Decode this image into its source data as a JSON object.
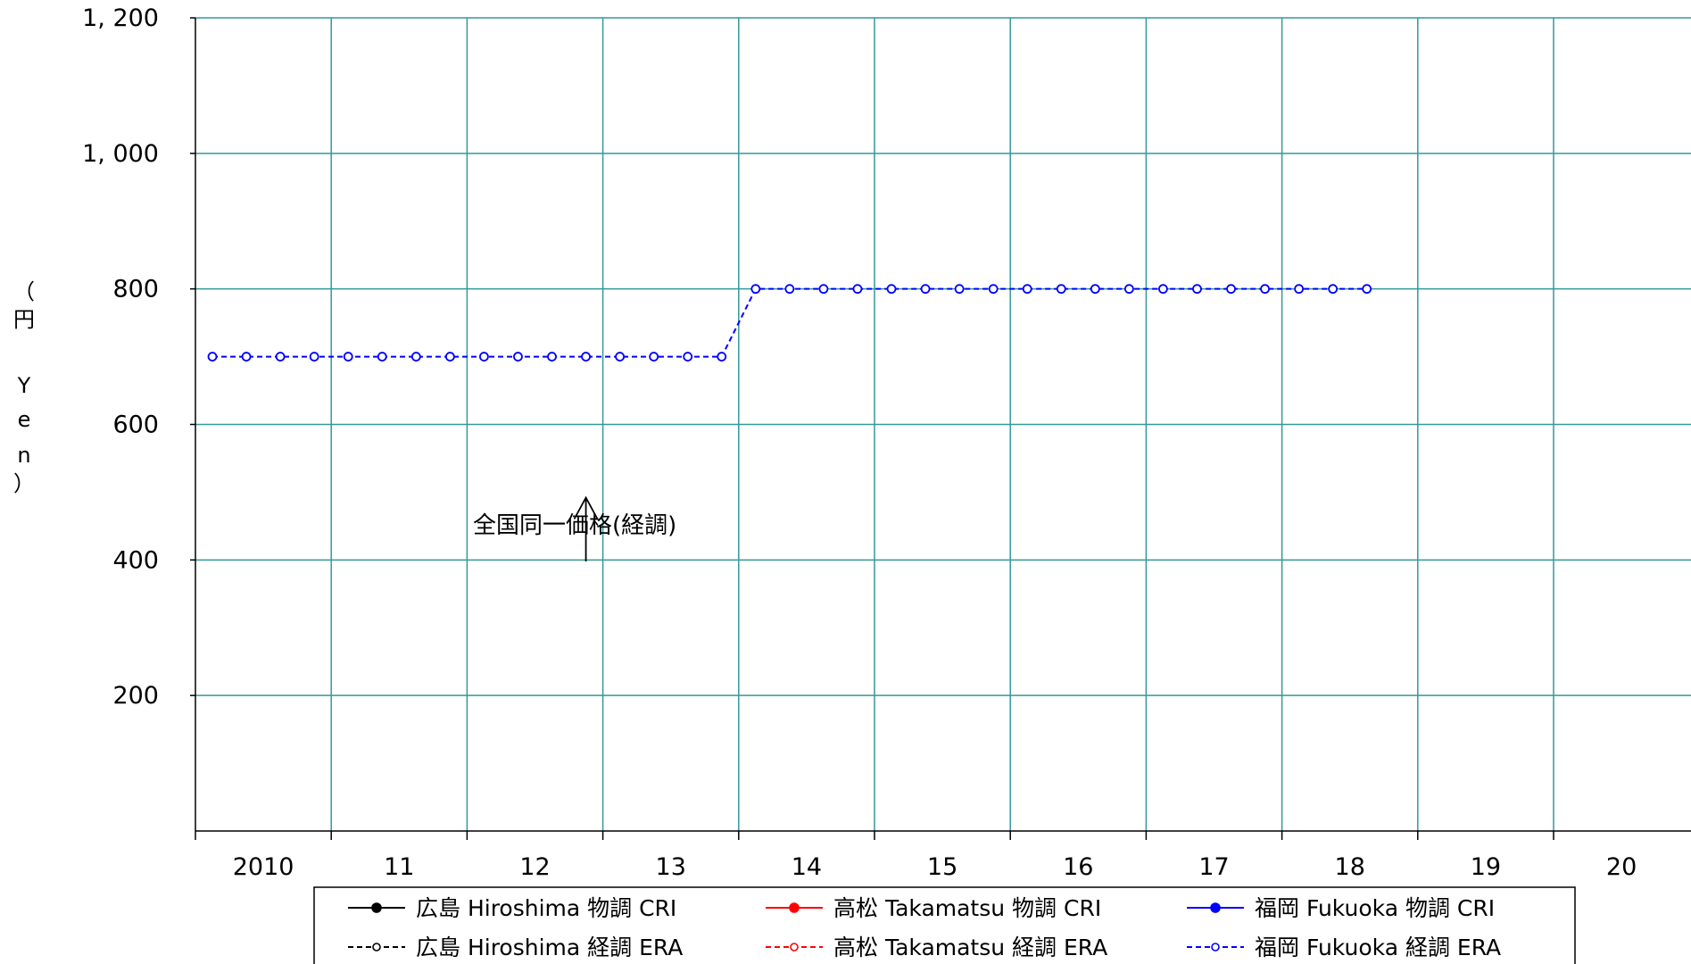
{
  "chart_data": {
    "type": "line",
    "title": "",
    "xlabel": "",
    "ylabel_chars": [
      "（",
      "円",
      "Y",
      "e",
      "n",
      "）"
    ],
    "xlim": [
      2010,
      2021
    ],
    "ylim": [
      0,
      1200
    ],
    "y_ticks": [
      200,
      400,
      600,
      800,
      1000,
      1200
    ],
    "y_tick_labels": [
      "200",
      "400",
      "600",
      "800",
      "1, 000",
      "1, 200"
    ],
    "x_ticks": [
      2010,
      2011,
      2012,
      2013,
      2014,
      2015,
      2016,
      2017,
      2018,
      2019,
      2020
    ],
    "x_tick_labels": [
      "2010",
      "11",
      "12",
      "13",
      "14",
      "15",
      "16",
      "17",
      "18",
      "19",
      "20"
    ],
    "grid": true,
    "grid_color": "#339999",
    "series": [
      {
        "name": "広島 Hiroshima 物調 CRI",
        "color": "#000000",
        "style": "solid",
        "marker": "filled",
        "x": [],
        "values": []
      },
      {
        "name": "高松 Takamatsu 物調 CRI",
        "color": "#ff0000",
        "style": "solid",
        "marker": "filled",
        "x": [],
        "values": []
      },
      {
        "name": "福岡 Fukuoka  物調 CRI",
        "color": "#0000ff",
        "style": "solid",
        "marker": "filled",
        "x": [],
        "values": []
      },
      {
        "name": "広島 Hiroshima 経調 ERA",
        "color": "#000000",
        "style": "dashed",
        "marker": "open",
        "x": [],
        "values": []
      },
      {
        "name": "高松 Takamatsu 経調 ERA",
        "color": "#ff0000",
        "style": "dashed",
        "marker": "open",
        "x": [],
        "values": []
      },
      {
        "name": "福岡 Fukuoka  経調 ERA",
        "color": "#0000ff",
        "style": "dashed",
        "marker": "open",
        "x": [
          2010.125,
          2010.375,
          2010.625,
          2010.875,
          2011.125,
          2011.375,
          2011.625,
          2011.875,
          2012.125,
          2012.375,
          2012.625,
          2012.875,
          2013.125,
          2013.375,
          2013.625,
          2013.875,
          2014.125,
          2014.375,
          2014.625,
          2014.875,
          2015.125,
          2015.375,
          2015.625,
          2015.875,
          2016.125,
          2016.375,
          2016.625,
          2016.875,
          2017.125,
          2017.375,
          2017.625,
          2017.875,
          2018.125,
          2018.375,
          2018.625
        ],
        "values": [
          700,
          700,
          700,
          700,
          700,
          700,
          700,
          700,
          700,
          700,
          700,
          700,
          700,
          700,
          700,
          700,
          800,
          800,
          800,
          800,
          800,
          800,
          800,
          800,
          800,
          800,
          800,
          800,
          800,
          800,
          800,
          800,
          800,
          800,
          800
        ]
      }
    ],
    "annotations": [
      {
        "text": "全国同一価格(経調)",
        "x": 2012.875,
        "arrow_from": 490,
        "arrow_to": 600
      }
    ],
    "legend": {
      "placement": "bottom",
      "columns": 3
    }
  }
}
